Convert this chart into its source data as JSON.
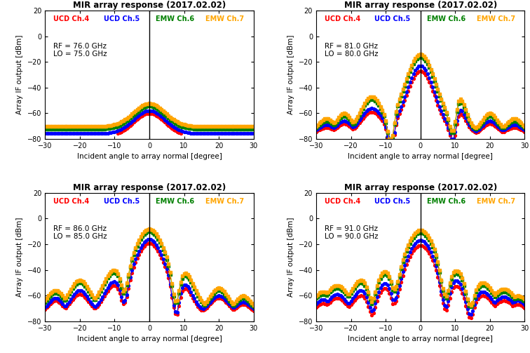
{
  "title": "MIR array response (2017.02.02)",
  "xlabel": "Incident angle to array normal [degree]",
  "ylabel": "Array IF output [dBm]",
  "xlim": [
    -30,
    30
  ],
  "ylim": [
    -80,
    20
  ],
  "xticks": [
    -30,
    -20,
    -10,
    0,
    10,
    20,
    30
  ],
  "yticks": [
    -80,
    -60,
    -40,
    -20,
    0,
    20
  ],
  "channels": [
    "UCD Ch.4",
    "UCD Ch.5",
    "EMW Ch.6",
    "EMW Ch.7"
  ],
  "colors": [
    "#ff0000",
    "#0000ff",
    "#008000",
    "#ffa500"
  ],
  "markers": [
    "o",
    "o",
    "s",
    "s"
  ],
  "subplots": [
    {
      "rf": 76.0,
      "lo": 75.0
    },
    {
      "rf": 81.0,
      "lo": 80.0
    },
    {
      "rf": 86.0,
      "lo": 85.0
    },
    {
      "rf": 91.0,
      "lo": 90.0
    }
  ]
}
